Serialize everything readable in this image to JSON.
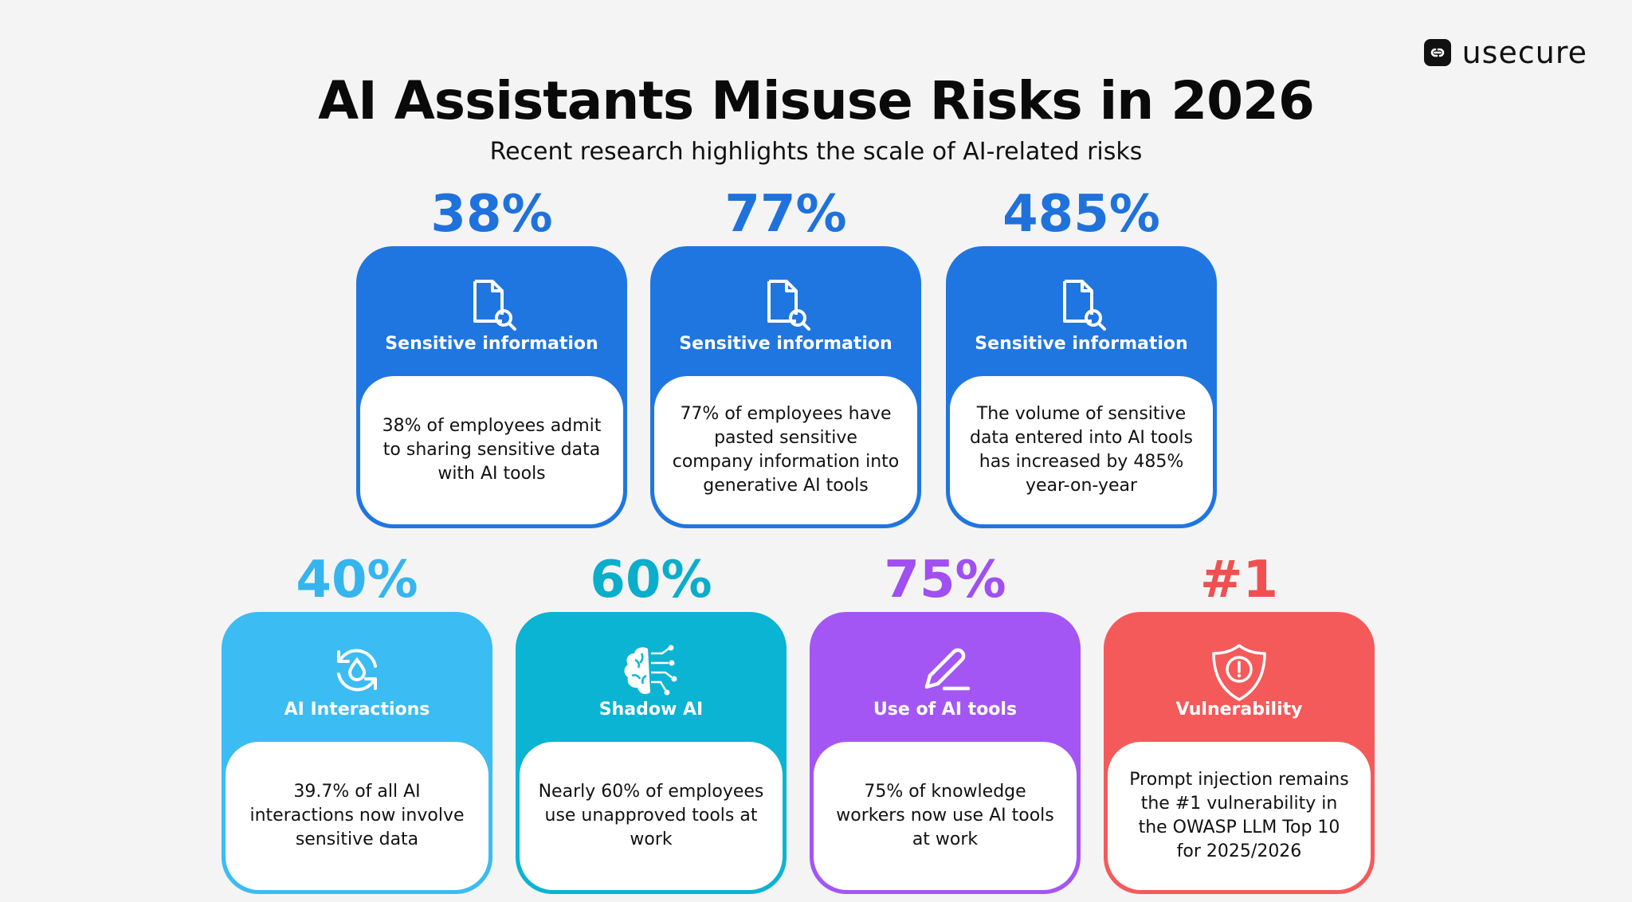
{
  "brand": {
    "name": "usecure"
  },
  "title": "AI Assistants Misuse Risks in 2026",
  "subtitle": "Recent research highlights the scale of AI-related risks",
  "cards": [
    {
      "stat": "38%",
      "label": "Sensitive information",
      "text": "38% of employees admit to sharing sensitive data with AI tools",
      "icon": "document-search-icon",
      "color": "#2076e0",
      "stat_color": "#1f72dc"
    },
    {
      "stat": "77%",
      "label": "Sensitive information",
      "text": "77% of employees have pasted sensitive company information into generative AI tools",
      "icon": "document-search-icon",
      "color": "#2076e0",
      "stat_color": "#1f72dc"
    },
    {
      "stat": "485%",
      "label": "Sensitive information",
      "text": "The volume of sensitive data entered into AI tools has increased by 485% year-on-year",
      "icon": "document-search-icon",
      "color": "#2076e0",
      "stat_color": "#1f72dc"
    },
    {
      "stat": "40%",
      "label": "AI Interactions",
      "text": "39.7% of all AI interactions now involve sensitive data",
      "icon": "data-refresh-icon",
      "color": "#3bbcf3",
      "stat_color": "#35b5ef"
    },
    {
      "stat": "60%",
      "label": "Shadow AI",
      "text": "Nearly 60% of employees use unapproved tools at work",
      "icon": "ai-brain-icon",
      "color": "#0ab4d2",
      "stat_color": "#0aaecb"
    },
    {
      "stat": "75%",
      "label": "Use of AI tools",
      "text": "75% of knowledge workers now use AI tools at work",
      "icon": "pencil-icon",
      "color": "#a356f4",
      "stat_color": "#a04ff0"
    },
    {
      "stat": "#1",
      "label": "Vulnerability",
      "text": "Prompt injection remains the #1 vulnerability in the OWASP LLM Top 10 for 2025/2026",
      "icon": "shield-alert-icon",
      "color": "#f55a5a",
      "stat_color": "#f05050"
    }
  ]
}
